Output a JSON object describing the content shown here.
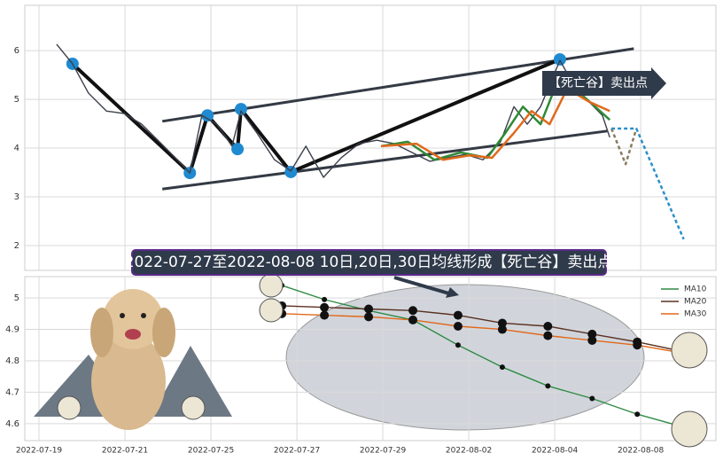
{
  "chart_data": [
    {
      "type": "line",
      "xlim": [
        -0.33,
        15.75
      ],
      "ylim": [
        1.49,
        6.93
      ],
      "yticks": [
        2,
        3,
        4,
        5,
        6
      ],
      "grid": true,
      "annotation": "【死亡谷】卖出点",
      "series": [
        {
          "color": "#3a3f4b",
          "x": [
            0.41,
            0.78,
            1.15,
            1.57,
            1.98,
            2.39,
            2.8,
            3.22,
            3.51,
            3.79,
            4.14,
            4.49,
            4.7,
            5.07,
            5.48,
            5.86,
            6.21,
            6.62,
            7.03,
            7.44,
            7.86,
            8.27,
            8.68,
            9.09,
            9.51,
            9.92,
            10.33,
            10.74,
            11.05,
            11.36,
            11.67,
            12.12,
            12.49,
            12.8,
            13.11,
            13.28
          ],
          "values": [
            6.13,
            5.73,
            5.13,
            4.76,
            4.71,
            4.49,
            4.13,
            3.76,
            3.49,
            4.67,
            4.49,
            4.04,
            4.76,
            4.31,
            3.76,
            3.53,
            4.04,
            3.4,
            3.8,
            4.09,
            4.16,
            4.09,
            3.91,
            3.73,
            3.8,
            3.87,
            3.76,
            4.13,
            4.85,
            4.49,
            4.85,
            5.8,
            5.22,
            4.95,
            4.67,
            4.22
          ]
        },
        {
          "color": "#2f8a36",
          "x": [
            7.96,
            8.58,
            9.2,
            9.81,
            10.43,
            10.85,
            11.26,
            11.67,
            12.12,
            12.7,
            13.28
          ],
          "values": [
            4.04,
            4.13,
            3.76,
            3.91,
            3.8,
            4.31,
            4.85,
            4.49,
            5.49,
            5.04,
            4.58
          ]
        },
        {
          "color": "#e0691c",
          "x": [
            7.96,
            8.78,
            9.4,
            10.02,
            10.54,
            11.05,
            11.46,
            11.88,
            12.29,
            12.8,
            13.28
          ],
          "values": [
            4.04,
            4.09,
            3.76,
            3.85,
            3.8,
            4.31,
            4.76,
            4.49,
            5.22,
            4.95,
            4.76
          ]
        },
        {
          "color": "#8a7a60",
          "dashed": true,
          "x": [
            13.32,
            13.65,
            13.9
          ],
          "values": [
            4.4,
            3.67,
            4.4
          ]
        },
        {
          "color": "#2b8fc9",
          "dashed": true,
          "x": [
            13.32,
            13.9,
            15.0
          ],
          "values": [
            4.4,
            4.4,
            2.13
          ]
        }
      ],
      "trendlines": [
        {
          "color": "#343a44",
          "x": [
            2.87,
            13.84
          ],
          "values": [
            4.55,
            6.04
          ]
        },
        {
          "color": "#343a44",
          "x": [
            2.87,
            13.22
          ],
          "values": [
            3.16,
            4.35
          ]
        }
      ],
      "pattern": {
        "color": "#1f8ad0",
        "x": [
          0.78,
          3.51,
          3.92,
          4.62,
          4.7,
          5.86,
          12.12
        ],
        "values": [
          5.73,
          3.49,
          4.67,
          3.98,
          4.8,
          3.51,
          5.82
        ]
      }
    },
    {
      "type": "line",
      "title": "2022-07-27至2022-08-08 10日,20日,30日均线形成【死亡谷】卖出点",
      "xlim": [
        -0.33,
        15.75
      ],
      "ylim": [
        4.546,
        5.068
      ],
      "yticks": [
        4.6,
        4.7,
        4.8,
        4.9,
        5.0
      ],
      "grid": true,
      "legend": "upper right",
      "xticks": [
        {
          "value": 0,
          "label": "2022-07-19"
        },
        {
          "value": 2,
          "label": "2022-07-21"
        },
        {
          "value": 4,
          "label": "2022-07-25"
        },
        {
          "value": 6,
          "label": "2022-07-27"
        },
        {
          "value": 8,
          "label": "2022-07-29"
        },
        {
          "value": 10,
          "label": "2022-08-02"
        },
        {
          "value": 12,
          "label": "2022-08-04"
        },
        {
          "value": 14,
          "label": "2022-08-08"
        }
      ],
      "series": [
        {
          "name": "MA10",
          "color": "#2e8b45",
          "x": [
            5.65,
            6.64,
            7.67,
            8.7,
            9.75,
            10.78,
            11.84,
            12.87,
            13.92,
            14.97
          ],
          "values": [
            5.04,
            4.995,
            4.96,
            4.93,
            4.85,
            4.78,
            4.72,
            4.68,
            4.63,
            4.59
          ]
        },
        {
          "name": "MA20",
          "color": "#5a3020",
          "x": [
            5.65,
            6.64,
            7.67,
            8.7,
            9.75,
            10.78,
            11.84,
            12.87,
            13.92,
            14.97
          ],
          "values": [
            4.975,
            4.97,
            4.965,
            4.96,
            4.945,
            4.92,
            4.91,
            4.885,
            4.86,
            4.83
          ]
        },
        {
          "name": "MA30",
          "color": "#e0691c",
          "x": [
            5.65,
            6.64,
            7.67,
            8.7,
            9.75,
            10.78,
            11.84,
            12.87,
            13.92,
            14.97
          ],
          "values": [
            4.95,
            4.945,
            4.94,
            4.93,
            4.91,
            4.9,
            4.88,
            4.865,
            4.85,
            4.825
          ]
        }
      ]
    }
  ]
}
